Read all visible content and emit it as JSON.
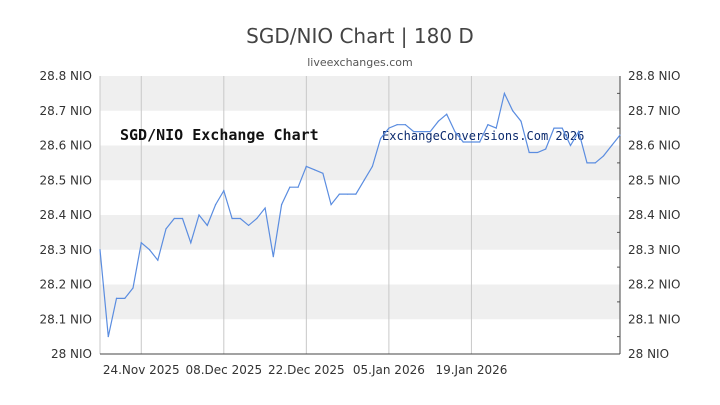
{
  "header": {
    "title": "SGD/NIO Chart | 180 D",
    "subtitle": "liveexchanges.com"
  },
  "watermark": {
    "left": "SGD/NIO Exchange Chart",
    "right": "ExchangeConversions.Com 2026"
  },
  "chart_data": {
    "type": "line",
    "title": "SGD/NIO Chart | 180 D",
    "subtitle": "liveexchanges.com",
    "xlabel": "",
    "ylabel": "",
    "ylim": [
      28.0,
      28.8
    ],
    "yticks": [
      "28 NIO",
      "28.1 NIO",
      "28.2 NIO",
      "28.3 NIO",
      "28.4 NIO",
      "28.5 NIO",
      "28.6 NIO",
      "28.7 NIO",
      "28.8 NIO"
    ],
    "xtick_labels": [
      "24.Nov 2025",
      "08.Dec 2025",
      "22.Dec 2025",
      "05.Jan 2026",
      "19.Jan 2026"
    ],
    "grid": true,
    "line_color": "#5b8de0",
    "band_color": "#efefef",
    "series": [
      {
        "values": [
          28.3,
          28.05,
          28.16,
          28.16,
          28.19,
          28.32,
          28.3,
          28.27,
          28.36,
          28.39,
          28.39,
          28.32,
          28.4,
          28.37,
          28.43,
          28.47,
          28.39,
          28.39,
          28.37,
          28.39,
          28.42,
          28.28,
          28.43,
          28.48,
          28.48,
          28.54,
          28.53,
          28.52,
          28.43,
          28.46,
          28.46,
          28.46,
          28.5,
          28.54,
          28.62,
          28.65,
          28.66,
          28.66,
          28.64,
          28.64,
          28.64,
          28.67,
          28.69,
          28.64,
          28.61,
          28.61,
          28.61,
          28.66,
          28.65,
          28.75,
          28.7,
          28.67,
          28.58,
          28.58,
          28.59,
          28.65,
          28.65,
          28.6,
          28.64,
          28.55,
          28.55,
          28.57,
          28.6,
          28.63
        ]
      }
    ]
  }
}
